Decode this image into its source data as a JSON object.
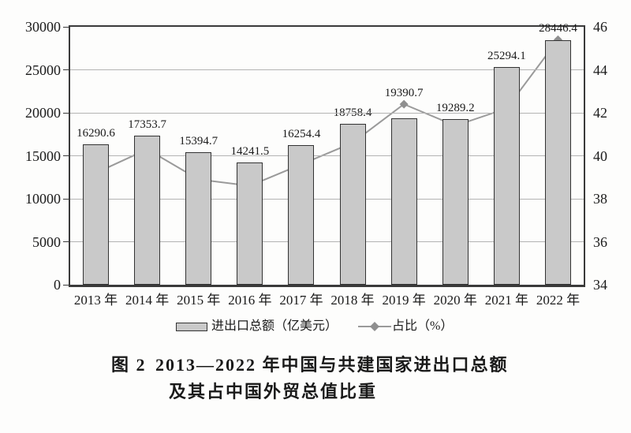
{
  "figure": {
    "caption_label": "图 2",
    "caption_line1": "2013—2022 年中国与共建国家进出口总额",
    "caption_line2": "及其占中国外贸总值比重"
  },
  "legend": {
    "bar_label": "进出口总额（亿美元）",
    "line_label": "占比（%）"
  },
  "colors": {
    "bar_fill": "#c9c9c9",
    "bar_border": "#333333",
    "line": "#9a9a9a",
    "marker": "#8f8f8f",
    "grid": "#b3b3b3",
    "axis": "#3a3a3a",
    "text": "#1a1a1a"
  },
  "chart_data": {
    "type": "combo",
    "categories": [
      "2013 年",
      "2014 年",
      "2015 年",
      "2016 年",
      "2017 年",
      "2018 年",
      "2019 年",
      "2020 年",
      "2021 年",
      "2022 年"
    ],
    "series": [
      {
        "name": "进出口总额（亿美元）",
        "type": "bar",
        "axis": "left",
        "values": [
          16290.6,
          17353.7,
          15394.7,
          14241.5,
          16254.4,
          18758.4,
          19390.7,
          19289.2,
          25294.1,
          28446.4
        ]
      },
      {
        "name": "占比（%）",
        "type": "line",
        "axis": "right",
        "values": [
          39.2,
          40.3,
          38.9,
          38.6,
          39.6,
          40.6,
          42.4,
          41.4,
          42.2,
          45.4
        ]
      }
    ],
    "left_axis": {
      "ticks": [
        30000,
        25000,
        20000,
        15000,
        10000,
        5000,
        0
      ],
      "min": 0,
      "max": 30000
    },
    "right_axis": {
      "ticks": [
        46,
        44,
        42,
        40,
        38,
        36,
        34
      ],
      "min": 34,
      "max": 46
    },
    "grid": true,
    "legend_position": "bottom",
    "title": "图 2 2013—2022 年中国与共建国家进出口总额及其占中国外贸总值比重"
  }
}
